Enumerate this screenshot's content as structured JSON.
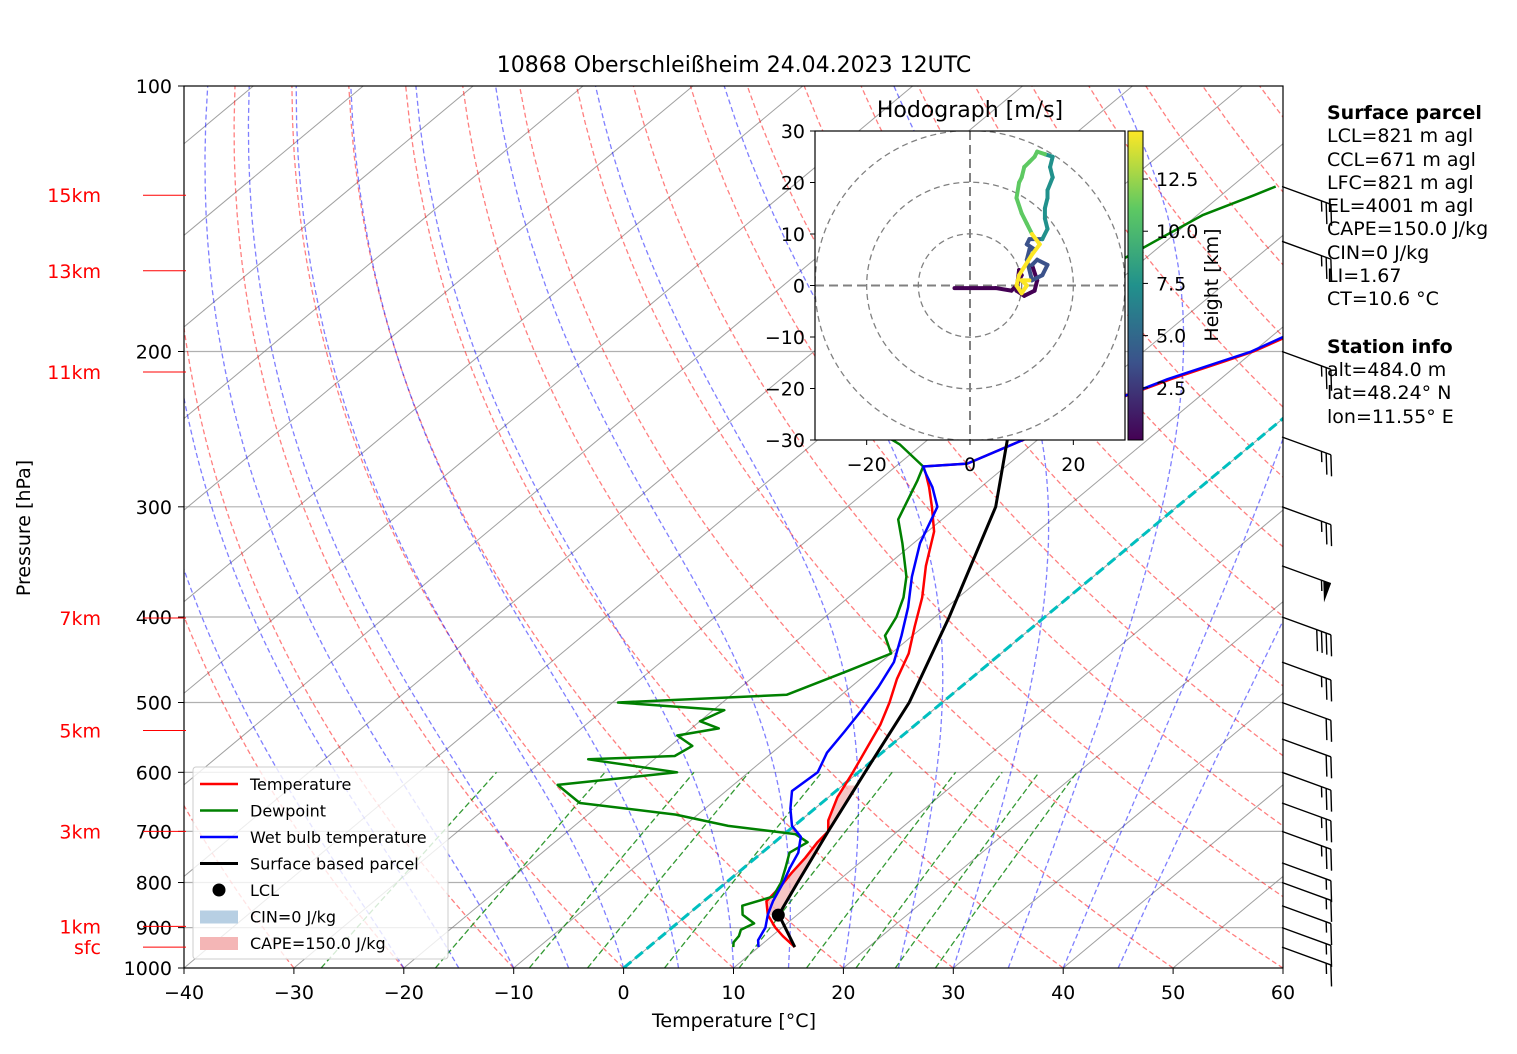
{
  "title": "10868 Oberschleißheim 24.04.2023 12UTC",
  "chart_data": {
    "type": "line",
    "title": "10868 Oberschleißheim 24.04.2023 12UTC",
    "xlabel": "Temperature [°C]",
    "ylabel": "Pressure [hPa]",
    "xlim": [
      -40,
      60
    ],
    "ylim": [
      1000,
      100
    ],
    "y_scale": "log",
    "x_ticks": [
      "−40",
      "−30",
      "−20",
      "−10",
      "0",
      "10",
      "20",
      "30",
      "40",
      "50",
      "60"
    ],
    "y_ticks": [
      "100",
      "200",
      "300",
      "400",
      "500",
      "600",
      "700",
      "800",
      "900",
      "1000"
    ],
    "grid": true,
    "legend_position": "lower-left",
    "height_labels": [
      {
        "label": "15km",
        "p": 133
      },
      {
        "label": "13km",
        "p": 162
      },
      {
        "label": "11km",
        "p": 211
      },
      {
        "label": "7km",
        "p": 401
      },
      {
        "label": "5km",
        "p": 538
      },
      {
        "label": "3km",
        "p": 700
      },
      {
        "label": "1km",
        "p": 897
      },
      {
        "label": "sfc",
        "p": 947
      }
    ],
    "series": [
      {
        "name": "Temperature",
        "color": "#ff0000",
        "points": [
          [
            13.3,
            947
          ],
          [
            11,
            920
          ],
          [
            9.4,
            900
          ],
          [
            7.3,
            870
          ],
          [
            5.7,
            840
          ],
          [
            5.4,
            810
          ],
          [
            4.9,
            780
          ],
          [
            4.5,
            750
          ],
          [
            3.9,
            720
          ],
          [
            3.7,
            700
          ],
          [
            2.5,
            680
          ],
          [
            0.8,
            640
          ],
          [
            -0.5,
            600
          ],
          [
            -2,
            560
          ],
          [
            -3.2,
            530
          ],
          [
            -4.8,
            500
          ],
          [
            -6.7,
            470
          ],
          [
            -8.4,
            440
          ],
          [
            -10.8,
            410
          ],
          [
            -13.3,
            380
          ],
          [
            -16.4,
            350
          ],
          [
            -19.4,
            320
          ],
          [
            -22.3,
            300
          ],
          [
            -24.7,
            285
          ],
          [
            -26.5,
            275
          ],
          [
            -27.5,
            270
          ],
          [
            -23.8,
            268
          ],
          [
            -21,
            250
          ],
          [
            -18,
            230
          ],
          [
            -14.5,
            215
          ],
          [
            -11.5,
            205
          ],
          [
            -10,
            200
          ],
          [
            -8.5,
            192
          ],
          [
            -7,
            180
          ],
          [
            -5,
            170
          ],
          [
            -4,
            160
          ],
          [
            -2.4,
            150
          ],
          [
            -1.4,
            140
          ],
          [
            0,
            133
          ],
          [
            0.9,
            130
          ]
        ]
      },
      {
        "name": "Dewpoint",
        "color": "#008000",
        "points": [
          [
            7.7,
            947
          ],
          [
            7.2,
            935
          ],
          [
            7,
            920
          ],
          [
            6.5,
            905
          ],
          [
            7,
            890
          ],
          [
            5,
            870
          ],
          [
            4,
            850
          ],
          [
            5.8,
            830
          ],
          [
            5,
            800
          ],
          [
            3.8,
            770
          ],
          [
            2.5,
            740
          ],
          [
            3,
            720
          ],
          [
            1,
            705
          ],
          [
            -6,
            690
          ],
          [
            -12,
            670
          ],
          [
            -22,
            650
          ],
          [
            -26,
            620
          ],
          [
            -16.5,
            600
          ],
          [
            -26,
            580
          ],
          [
            -18.5,
            575
          ],
          [
            -18,
            560
          ],
          [
            -20.5,
            545
          ],
          [
            -17.5,
            535
          ],
          [
            -20,
            525
          ],
          [
            -19,
            510
          ],
          [
            -29.5,
            500
          ],
          [
            -15,
            490
          ],
          [
            -12,
            460
          ],
          [
            -10,
            440
          ],
          [
            -12.5,
            420
          ],
          [
            -13.5,
            400
          ],
          [
            -15,
            380
          ],
          [
            -17,
            360
          ],
          [
            -21,
            330
          ],
          [
            -24,
            310
          ],
          [
            -26.5,
            280
          ],
          [
            -27.5,
            270
          ],
          [
            -32,
            255
          ],
          [
            -36,
            245
          ],
          [
            -36.5,
            235
          ],
          [
            -37,
            220
          ],
          [
            -37.5,
            210
          ],
          [
            -37,
            200
          ],
          [
            -35,
            185
          ],
          [
            -33,
            165
          ],
          [
            -31,
            150
          ],
          [
            -29.5,
            140
          ],
          [
            -27,
            133
          ],
          [
            -26,
            130
          ]
        ]
      },
      {
        "name": "Wet bulb temperature",
        "color": "#0000ff",
        "points": [
          [
            10,
            947
          ],
          [
            9.2,
            930
          ],
          [
            8.5,
            900
          ],
          [
            7.3,
            870
          ],
          [
            6.3,
            840
          ],
          [
            5.2,
            800
          ],
          [
            4.2,
            770
          ],
          [
            3.3,
            740
          ],
          [
            1.8,
            710
          ],
          [
            -0.2,
            690
          ],
          [
            -2.2,
            660
          ],
          [
            -4,
            630
          ],
          [
            -3.7,
            600
          ],
          [
            -5,
            570
          ],
          [
            -5.7,
            540
          ],
          [
            -6.5,
            510
          ],
          [
            -7.5,
            480
          ],
          [
            -8.8,
            450
          ],
          [
            -11,
            420
          ],
          [
            -13.5,
            390
          ],
          [
            -16.5,
            360
          ],
          [
            -19.4,
            330
          ],
          [
            -21.8,
            300
          ],
          [
            -24.4,
            285
          ],
          [
            -26.5,
            275
          ],
          [
            -27.5,
            270
          ],
          [
            -23.8,
            268
          ],
          [
            -21,
            250
          ],
          [
            -18,
            230
          ],
          [
            -14.8,
            215
          ],
          [
            -11.8,
            205
          ],
          [
            -10.2,
            200
          ],
          [
            -8.8,
            192
          ],
          [
            -7.2,
            180
          ],
          [
            -5.2,
            170
          ],
          [
            -4.2,
            160
          ],
          [
            -2.6,
            150
          ],
          [
            -1.6,
            140
          ],
          [
            -0.2,
            133
          ],
          [
            0.7,
            130
          ]
        ]
      },
      {
        "name": "Surface based parcel",
        "color": "#000000",
        "points": [
          [
            13.3,
            947
          ],
          [
            8.3,
            870
          ],
          [
            6.5,
            800
          ],
          [
            3.7,
            700
          ],
          [
            0.6,
            600
          ],
          [
            -3,
            500
          ],
          [
            -8.7,
            400
          ],
          [
            -16.5,
            300
          ],
          [
            -31,
            200
          ],
          [
            -40,
            155
          ]
        ]
      }
    ],
    "lcl": {
      "label": "LCL",
      "t": 8.3,
      "p": 871
    },
    "cin_label": "CIN=0 J/kg",
    "cape_label": "CAPE=150.0 J/kg",
    "wind_barbs": [
      {
        "p": 947,
        "speed_kt": 15
      },
      {
        "p": 900,
        "speed_kt": 15
      },
      {
        "p": 850,
        "speed_kt": 15
      },
      {
        "p": 800,
        "speed_kt": 15
      },
      {
        "p": 760,
        "speed_kt": 15
      },
      {
        "p": 700,
        "speed_kt": 25
      },
      {
        "p": 650,
        "speed_kt": 25
      },
      {
        "p": 600,
        "speed_kt": 25
      },
      {
        "p": 550,
        "speed_kt": 20
      },
      {
        "p": 500,
        "speed_kt": 20
      },
      {
        "p": 450,
        "speed_kt": 25
      },
      {
        "p": 400,
        "speed_kt": 40
      },
      {
        "p": 350,
        "speed_kt": 55
      },
      {
        "p": 300,
        "speed_kt": 25
      },
      {
        "p": 250,
        "speed_kt": 25
      },
      {
        "p": 200,
        "speed_kt": 25
      },
      {
        "p": 150,
        "speed_kt": 25
      },
      {
        "p": 130,
        "speed_kt": 25
      }
    ],
    "hodograph": {
      "title": "Hodograph [m/s]",
      "xlim": [
        -30,
        30
      ],
      "ylim": [
        -30,
        30
      ],
      "ticks": [
        "−20",
        "0",
        "20"
      ],
      "y_ticks": [
        "30",
        "20",
        "10",
        "0",
        "−10",
        "−20",
        "−30"
      ],
      "rings": [
        10,
        20,
        30
      ],
      "colorbar_label": "Height [km]",
      "colorbar_ticks": [
        "2.5",
        "5.0",
        "7.5",
        "10.0",
        "12.5"
      ],
      "uv_path": [
        [
          -3,
          -0.5
        ],
        [
          5,
          -0.5
        ],
        [
          8,
          -1
        ],
        [
          9,
          0
        ],
        [
          10,
          2
        ],
        [
          9.5,
          3
        ],
        [
          9,
          -1
        ],
        [
          10.5,
          -2
        ],
        [
          12.5,
          -1
        ],
        [
          13,
          1
        ],
        [
          12,
          4
        ],
        [
          13,
          5
        ],
        [
          15,
          4
        ],
        [
          14,
          2
        ],
        [
          12,
          1
        ],
        [
          11,
          5
        ],
        [
          11.5,
          7
        ],
        [
          12.5,
          7
        ],
        [
          11,
          8
        ],
        [
          11.5,
          9
        ],
        [
          14,
          9
        ],
        [
          15,
          11
        ],
        [
          14.5,
          13
        ],
        [
          14.5,
          15
        ],
        [
          15,
          17
        ],
        [
          15,
          18.5
        ],
        [
          16,
          21
        ],
        [
          15.5,
          23
        ],
        [
          16,
          25
        ],
        [
          14.5,
          25.5
        ],
        [
          13,
          26
        ],
        [
          12.5,
          25
        ],
        [
          11.5,
          24
        ],
        [
          10.5,
          23
        ],
        [
          10,
          21
        ],
        [
          9.5,
          20
        ],
        [
          9,
          17
        ],
        [
          10,
          14
        ],
        [
          11,
          12
        ],
        [
          12,
          10
        ],
        [
          13.5,
          8
        ],
        [
          12,
          6
        ],
        [
          9.5,
          2
        ],
        [
          9,
          0
        ],
        [
          10,
          -1.5
        ],
        [
          11,
          0
        ],
        [
          10,
          1
        ],
        [
          11.5,
          1
        ]
      ]
    }
  },
  "info": {
    "parcel_header": "Surface parcel",
    "parcel_lines": [
      "LCL=821 m agl",
      "CCL=671 m agl",
      "LFC=821 m agl",
      "EL=4001 m agl",
      "CAPE=150.0 J/kg",
      "CIN=0 J/kg",
      "LI=1.67",
      "CT=10.6 °C"
    ],
    "station_header": "Station info",
    "station_lines": [
      "alt=484.0 m",
      "lat=48.24° N",
      "lon=11.55° E"
    ]
  },
  "colors": {
    "temperature": "#ff0000",
    "dewpoint": "#008000",
    "wetbulb": "#0000ff",
    "parcel": "#000000",
    "dry_adiabat": "#ff0000",
    "moist_adiabat": "#0000ff",
    "mixing_ratio": "#008000",
    "isotherm": "#808080",
    "zero_isotherm": "#00bfbf",
    "height_labels": "#ff0000",
    "cape_fill": "#f4b6b6",
    "cin_fill": "#b7cfe3"
  }
}
